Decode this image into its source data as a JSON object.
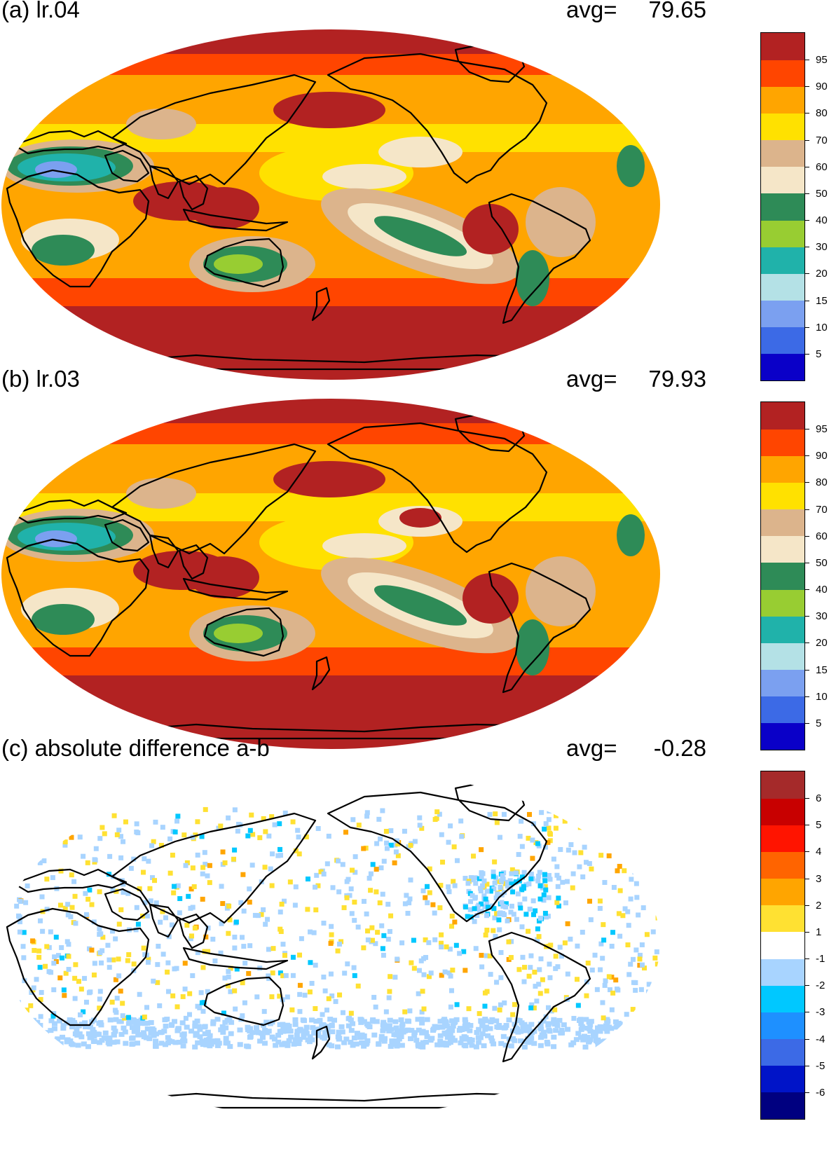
{
  "panels": [
    {
      "id": "a",
      "title": "(a) lr.04",
      "avg_label": "avg=",
      "avg_value": "79.65",
      "colorbar": {
        "colors": [
          "#0a00c8",
          "#3c6ae6",
          "#7ba0f0",
          "#b4e1e6",
          "#20b2aa",
          "#98cd32",
          "#2e8b57",
          "#f5e6c8",
          "#dcb48c",
          "#ffe100",
          "#ffa500",
          "#ff4500",
          "#b22222"
        ],
        "labels": [
          "5",
          "10",
          "15",
          "20",
          "30",
          "40",
          "50",
          "60",
          "70",
          "80",
          "90",
          "95"
        ]
      }
    },
    {
      "id": "b",
      "title": "(b) lr.03",
      "avg_label": "avg=",
      "avg_value": "79.93",
      "colorbar": {
        "colors": [
          "#0a00c8",
          "#3c6ae6",
          "#7ba0f0",
          "#b4e1e6",
          "#20b2aa",
          "#98cd32",
          "#2e8b57",
          "#f5e6c8",
          "#dcb48c",
          "#ffe100",
          "#ffa500",
          "#ff4500",
          "#b22222"
        ],
        "labels": [
          "5",
          "10",
          "15",
          "20",
          "30",
          "40",
          "50",
          "60",
          "70",
          "80",
          "90",
          "95"
        ]
      }
    },
    {
      "id": "c",
      "title": "(c) absolute difference a-b",
      "avg_label": "avg=",
      "avg_value": "-0.28",
      "colorbar": {
        "colors": [
          "#000080",
          "#0014c8",
          "#3c6ae6",
          "#1e90ff",
          "#00c8ff",
          "#a8d4ff",
          "#ffffff",
          "#ffe132",
          "#ffa500",
          "#ff6400",
          "#ff1400",
          "#c80000",
          "#a52a2a"
        ],
        "labels": [
          "-6",
          "-5",
          "-4",
          "-3",
          "-2",
          "-1",
          "1",
          "2",
          "3",
          "4",
          "5",
          "6"
        ]
      }
    }
  ]
}
